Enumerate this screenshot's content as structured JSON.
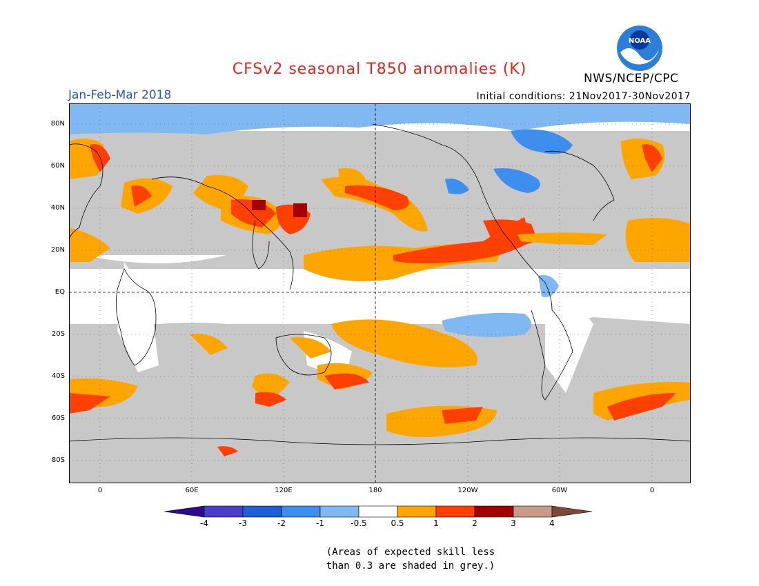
{
  "header": {
    "title": "CFSv2 seasonal T850 anomalies (K)",
    "season": "Jan-Feb-Mar 2018",
    "initial_conditions": "Initial conditions: 21Nov2017-30Nov2017",
    "agency": "NWS/NCEP/CPC",
    "logo_text": "NOAA"
  },
  "map": {
    "lat_labels": [
      "80N",
      "60N",
      "40N",
      "20N",
      "EQ",
      "20S",
      "40S",
      "60S",
      "80S"
    ],
    "lon_labels": [
      "0",
      "60E",
      "120E",
      "180",
      "120W",
      "60W",
      "0"
    ],
    "grey_color": "#c8c8c8",
    "skill_note_line1": "(Areas of expected skill less",
    "skill_note_line2": "than 0.3 are shaded in grey.)"
  },
  "colorbar": {
    "labels": [
      "-4",
      "-3",
      "-2",
      "-1",
      "-0.5",
      "0.5",
      "1",
      "2",
      "3",
      "4"
    ],
    "colors": [
      "#2d0c8f",
      "#4a3fcc",
      "#1f5fd6",
      "#3e8eee",
      "#80b8f2",
      "#ffffff",
      "#ffa500",
      "#ff4000",
      "#a30000",
      "#c99a88",
      "#7a4a3a"
    ]
  }
}
